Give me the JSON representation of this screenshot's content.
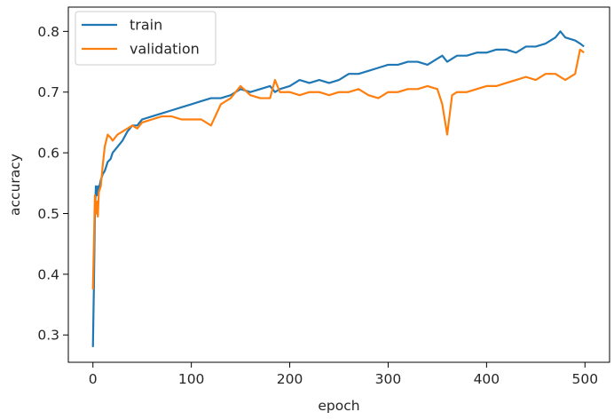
{
  "chart_data": {
    "type": "line",
    "title": "",
    "xlabel": "epoch",
    "ylabel": "accuracy",
    "xlim": [
      -25,
      525
    ],
    "ylim": [
      0.255,
      0.84
    ],
    "xticks": [
      0,
      100,
      200,
      300,
      400,
      500
    ],
    "yticks": [
      0.3,
      0.4,
      0.5,
      0.6,
      0.7,
      0.8
    ],
    "xtick_labels": [
      "0",
      "100",
      "200",
      "300",
      "400",
      "500"
    ],
    "ytick_labels": [
      "0.3",
      "0.4",
      "0.5",
      "0.6",
      "0.7",
      "0.8"
    ],
    "grid": false,
    "legend_position": "top-left",
    "x": [
      0,
      1,
      2,
      3,
      4,
      5,
      6,
      8,
      10,
      12,
      15,
      18,
      20,
      25,
      30,
      35,
      40,
      45,
      50,
      60,
      70,
      80,
      90,
      100,
      110,
      120,
      130,
      140,
      145,
      150,
      160,
      170,
      180,
      185,
      190,
      200,
      210,
      220,
      230,
      240,
      250,
      260,
      270,
      280,
      290,
      300,
      310,
      320,
      330,
      340,
      350,
      355,
      360,
      365,
      370,
      380,
      390,
      400,
      410,
      420,
      430,
      440,
      450,
      460,
      470,
      475,
      480,
      490,
      495,
      499
    ],
    "series": [
      {
        "name": "train",
        "color": "#1f77b4",
        "values": [
          0.28,
          0.38,
          0.5,
          0.545,
          0.53,
          0.545,
          0.54,
          0.555,
          0.565,
          0.57,
          0.585,
          0.59,
          0.6,
          0.61,
          0.62,
          0.635,
          0.645,
          0.645,
          0.655,
          0.66,
          0.665,
          0.67,
          0.675,
          0.68,
          0.685,
          0.69,
          0.69,
          0.695,
          0.7,
          0.705,
          0.7,
          0.705,
          0.71,
          0.7,
          0.705,
          0.71,
          0.72,
          0.715,
          0.72,
          0.715,
          0.72,
          0.73,
          0.73,
          0.735,
          0.74,
          0.745,
          0.745,
          0.75,
          0.75,
          0.745,
          0.755,
          0.76,
          0.75,
          0.755,
          0.76,
          0.76,
          0.765,
          0.765,
          0.77,
          0.77,
          0.765,
          0.775,
          0.775,
          0.78,
          0.79,
          0.8,
          0.79,
          0.785,
          0.78,
          0.775
        ]
      },
      {
        "name": "validation",
        "color": "#ff7f0e",
        "values": [
          0.375,
          0.45,
          0.53,
          0.5,
          0.52,
          0.495,
          0.535,
          0.545,
          0.58,
          0.61,
          0.63,
          0.625,
          0.62,
          0.63,
          0.635,
          0.64,
          0.645,
          0.64,
          0.65,
          0.655,
          0.66,
          0.66,
          0.655,
          0.655,
          0.655,
          0.645,
          0.68,
          0.69,
          0.7,
          0.71,
          0.695,
          0.69,
          0.69,
          0.72,
          0.7,
          0.7,
          0.695,
          0.7,
          0.7,
          0.695,
          0.7,
          0.7,
          0.705,
          0.695,
          0.69,
          0.7,
          0.7,
          0.705,
          0.705,
          0.71,
          0.705,
          0.68,
          0.63,
          0.695,
          0.7,
          0.7,
          0.705,
          0.71,
          0.71,
          0.715,
          0.72,
          0.725,
          0.72,
          0.73,
          0.73,
          0.725,
          0.72,
          0.73,
          0.77,
          0.765
        ]
      }
    ]
  }
}
